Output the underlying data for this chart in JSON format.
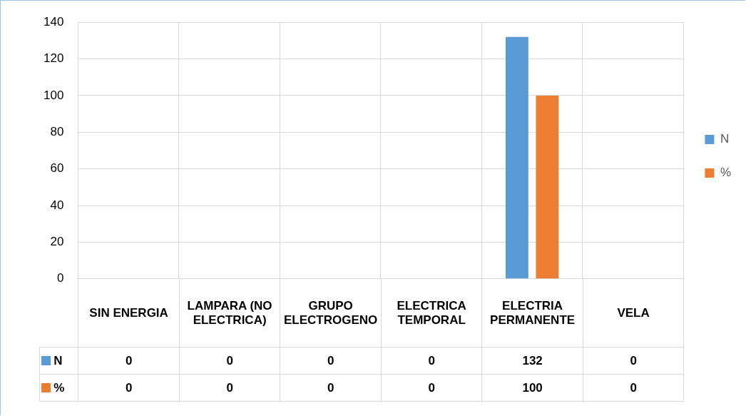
{
  "chart_data": {
    "type": "bar",
    "categories": [
      "SIN ENERGIA",
      "LAMPARA (NO ELECTRICA)",
      "GRUPO ELECTROGENO",
      "ELECTRICA TEMPORAL",
      "ELECTRIA PERMANENTE",
      "VELA"
    ],
    "series": [
      {
        "name": "N",
        "color": "#5b9bd5",
        "values": [
          0,
          0,
          0,
          0,
          132,
          0
        ]
      },
      {
        "name": "%",
        "color": "#ed7d31",
        "values": [
          0,
          0,
          0,
          0,
          100,
          0
        ]
      }
    ],
    "ylim": [
      0,
      140
    ],
    "yticks": [
      0,
      20,
      40,
      60,
      80,
      100,
      120,
      140
    ],
    "grid": true,
    "legend": "right",
    "data_labels": true
  }
}
